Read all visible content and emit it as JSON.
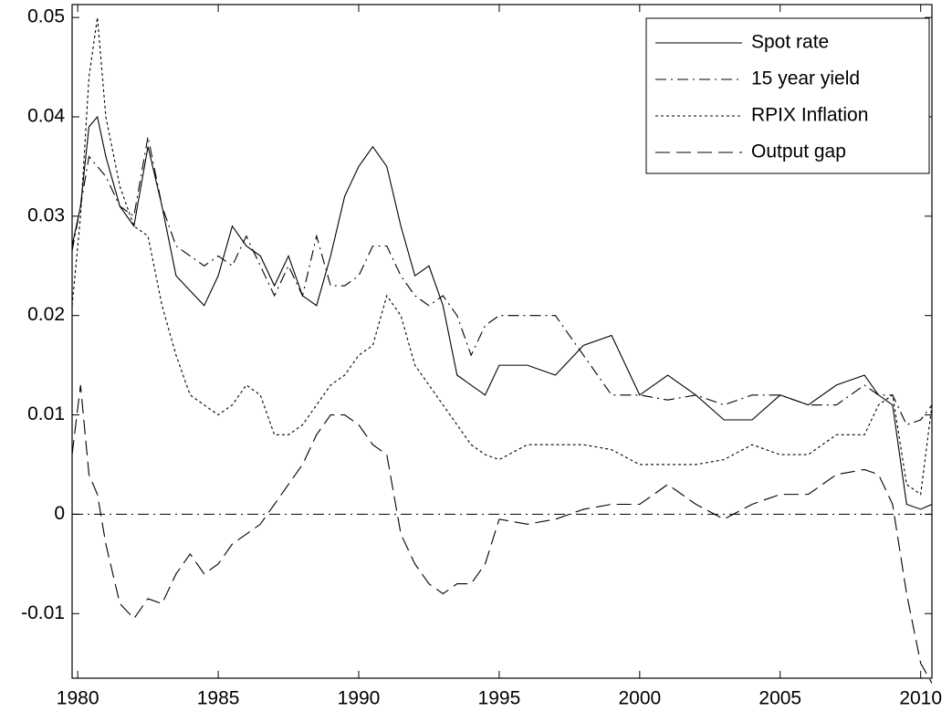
{
  "chart_data": {
    "type": "line",
    "x": [
      1979.8,
      1980.1,
      1980.4,
      1980.7,
      1981,
      1981.5,
      1982,
      1982.5,
      1983,
      1983.5,
      1984,
      1984.5,
      1985,
      1985.5,
      1986,
      1986.5,
      1987,
      1987.5,
      1988,
      1988.5,
      1989,
      1989.5,
      1990,
      1990.5,
      1991,
      1991.5,
      1992,
      1992.5,
      1993,
      1993.5,
      1994,
      1994.5,
      1995,
      1996,
      1997,
      1998,
      1999,
      2000,
      2001,
      2002,
      2003,
      2004,
      2005,
      2006,
      2007,
      2008,
      2008.5,
      2009,
      2009.5,
      2010,
      2010.4
    ],
    "series": [
      {
        "name": "Spot rate",
        "color": "#000000",
        "dash": "solid",
        "values": [
          0.027,
          0.031,
          0.039,
          0.04,
          0.036,
          0.031,
          0.029,
          0.037,
          0.031,
          0.024,
          0.0225,
          0.021,
          0.024,
          0.029,
          0.027,
          0.026,
          0.023,
          0.026,
          0.022,
          0.021,
          0.026,
          0.032,
          0.035,
          0.037,
          0.035,
          0.029,
          0.024,
          0.025,
          0.021,
          0.014,
          0.013,
          0.012,
          0.015,
          0.015,
          0.014,
          0.017,
          0.018,
          0.012,
          0.014,
          0.012,
          0.0095,
          0.0095,
          0.012,
          0.011,
          0.013,
          0.014,
          0.012,
          0.011,
          0.001,
          0.0005,
          0.001
        ]
      },
      {
        "name": "15 year yield",
        "color": "#000000",
        "dash": "dash-dot",
        "values": [
          0.0265,
          0.031,
          0.036,
          0.035,
          0.034,
          0.031,
          0.03,
          0.038,
          0.031,
          0.027,
          0.026,
          0.025,
          0.026,
          0.025,
          0.028,
          0.025,
          0.022,
          0.025,
          0.022,
          0.028,
          0.023,
          0.023,
          0.024,
          0.027,
          0.027,
          0.024,
          0.022,
          0.021,
          0.022,
          0.02,
          0.016,
          0.019,
          0.02,
          0.02,
          0.02,
          0.016,
          0.012,
          0.012,
          0.0115,
          0.012,
          0.011,
          0.012,
          0.012,
          0.011,
          0.011,
          0.013,
          0.012,
          0.012,
          0.009,
          0.0095,
          0.011
        ]
      },
      {
        "name": "RPIX Inflation",
        "color": "#000000",
        "dash": "dotted",
        "values": [
          0.021,
          0.03,
          0.044,
          0.05,
          0.04,
          0.033,
          0.029,
          0.028,
          0.021,
          0.016,
          0.012,
          0.011,
          0.01,
          0.011,
          0.013,
          0.012,
          0.008,
          0.008,
          0.009,
          0.011,
          0.013,
          0.014,
          0.016,
          0.017,
          0.022,
          0.02,
          0.015,
          0.013,
          0.011,
          0.009,
          0.007,
          0.006,
          0.0055,
          0.007,
          0.007,
          0.007,
          0.0065,
          0.005,
          0.005,
          0.005,
          0.0055,
          0.007,
          0.006,
          0.006,
          0.008,
          0.008,
          0.011,
          0.012,
          0.003,
          0.002,
          0.011
        ]
      },
      {
        "name": "Output gap",
        "color": "#000000",
        "dash": "dashed",
        "values": [
          0.006,
          0.013,
          0.004,
          0.002,
          -0.003,
          -0.009,
          -0.0105,
          -0.0085,
          -0.009,
          -0.006,
          -0.004,
          -0.006,
          -0.005,
          -0.003,
          -0.002,
          -0.001,
          0.001,
          0.003,
          0.005,
          0.008,
          0.01,
          0.01,
          0.009,
          0.007,
          0.006,
          -0.002,
          -0.005,
          -0.007,
          -0.008,
          -0.007,
          -0.007,
          -0.005,
          -0.0005,
          -0.001,
          -0.0005,
          0.0005,
          0.001,
          0.001,
          0.003,
          0.001,
          -0.0005,
          0.001,
          0.002,
          0.002,
          0.004,
          0.0045,
          0.004,
          0.001,
          -0.008,
          -0.015,
          -0.017
        ]
      }
    ],
    "reference_line": 0,
    "xlim": [
      1979.8,
      2010.4
    ],
    "xticks": [
      1980,
      1985,
      1990,
      1995,
      2000,
      2005,
      2010
    ],
    "ylim": [
      -0.0165,
      0.0513
    ],
    "yticks": [
      -0.01,
      0,
      0.01,
      0.02,
      0.03,
      0.04,
      0.05
    ],
    "grid": false,
    "legend": "upper right"
  }
}
